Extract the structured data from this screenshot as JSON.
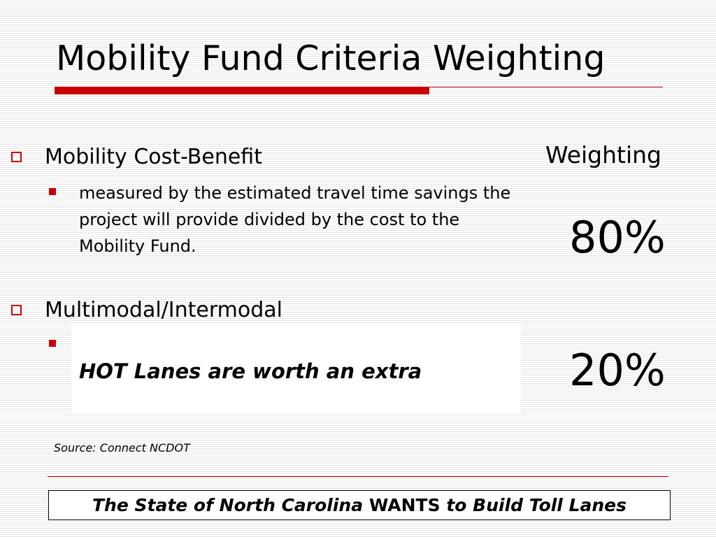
{
  "slide": {
    "title": "Mobility Fund Criteria Weighting",
    "colors": {
      "accent": "#cc0000",
      "background": "#ffffff",
      "stripe": "#e4e4e4",
      "text": "#000000"
    }
  },
  "criteria": [
    {
      "label": "Mobility Cost-Benefit",
      "description": "measured by the estimated travel time savings the project will provide divided by the cost to the Mobility Fund.",
      "weighting": "80%"
    },
    {
      "label": "Multimodal/Intermodal",
      "weighting": "20%"
    }
  ],
  "weighting_header": "Weighting",
  "callout": {
    "text": "HOT Lanes are worth an extra"
  },
  "source": "Source: Connect NCDOT",
  "banner": {
    "part1": "The State of North Carolina ",
    "part2": "WANTS",
    "part3": " to Build Toll Lanes"
  }
}
